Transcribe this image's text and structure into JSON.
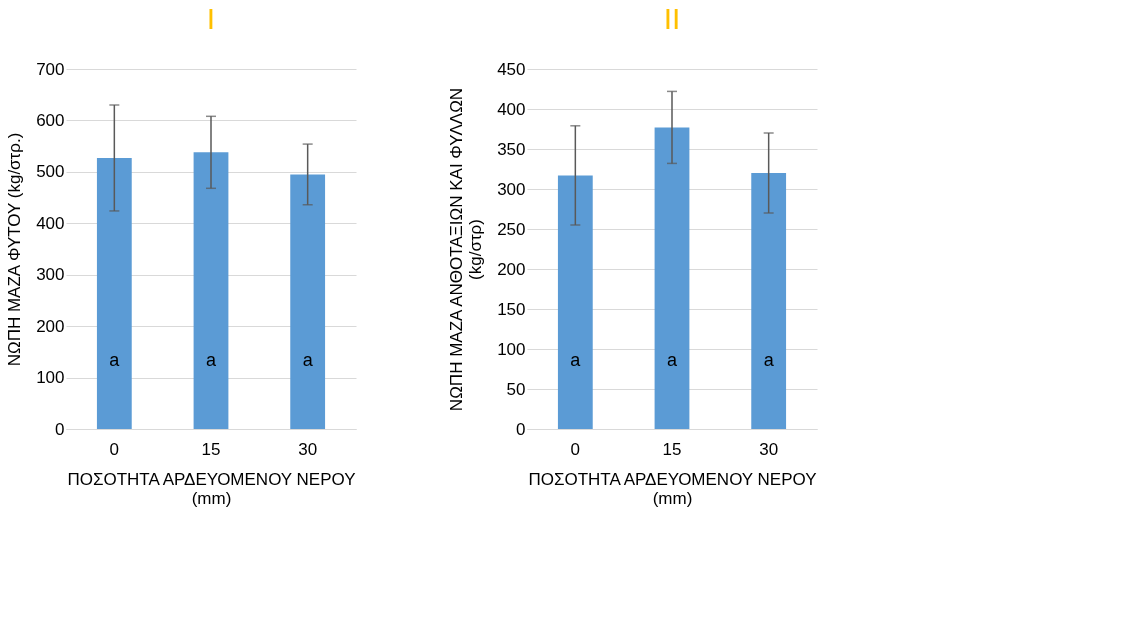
{
  "chart_data": [
    {
      "type": "bar",
      "title": "I",
      "ylabel": "ΝΩΠΗ ΜΑΖΑ ΦΥΤΟΥ (kg/στρ.)",
      "xlabel": "ΠΟΣΟΤΗΤΑ ΑΡΔΕΥΟΜΕΝΟΥ ΝΕΡΟΥ\n(mm)",
      "categories": [
        "0",
        "15",
        "30"
      ],
      "values": [
        527,
        538,
        495
      ],
      "errors": [
        103,
        70,
        59
      ],
      "color": "#5b9bd5",
      "ylim": [
        0,
        700
      ],
      "yticks": [
        0,
        100,
        200,
        300,
        400,
        500,
        600,
        700
      ],
      "grid": "y",
      "annotations": [
        "a",
        "a",
        "a"
      ]
    },
    {
      "type": "bar",
      "title": "II",
      "ylabel": "ΝΩΠΗ ΜΑΖΑ ΑΝΘΟΤΑΞΙΩΝ ΚΑΙ ΦΥΛΛΩΝ\n(kg/στρ)",
      "xlabel": "ΠΟΣΟΤΗΤΑ ΑΡΔΕΥΟΜΕΝΟΥ ΝΕΡΟΥ\n(mm)",
      "categories": [
        "0",
        "15",
        "30"
      ],
      "values": [
        317,
        377,
        320
      ],
      "errors": [
        62,
        45,
        50
      ],
      "color": "#5b9bd5",
      "ylim": [
        0,
        450
      ],
      "yticks": [
        0,
        50,
        100,
        150,
        200,
        250,
        300,
        350,
        400,
        450
      ],
      "grid": "y",
      "annotations": [
        "a",
        "a",
        "a"
      ]
    }
  ]
}
